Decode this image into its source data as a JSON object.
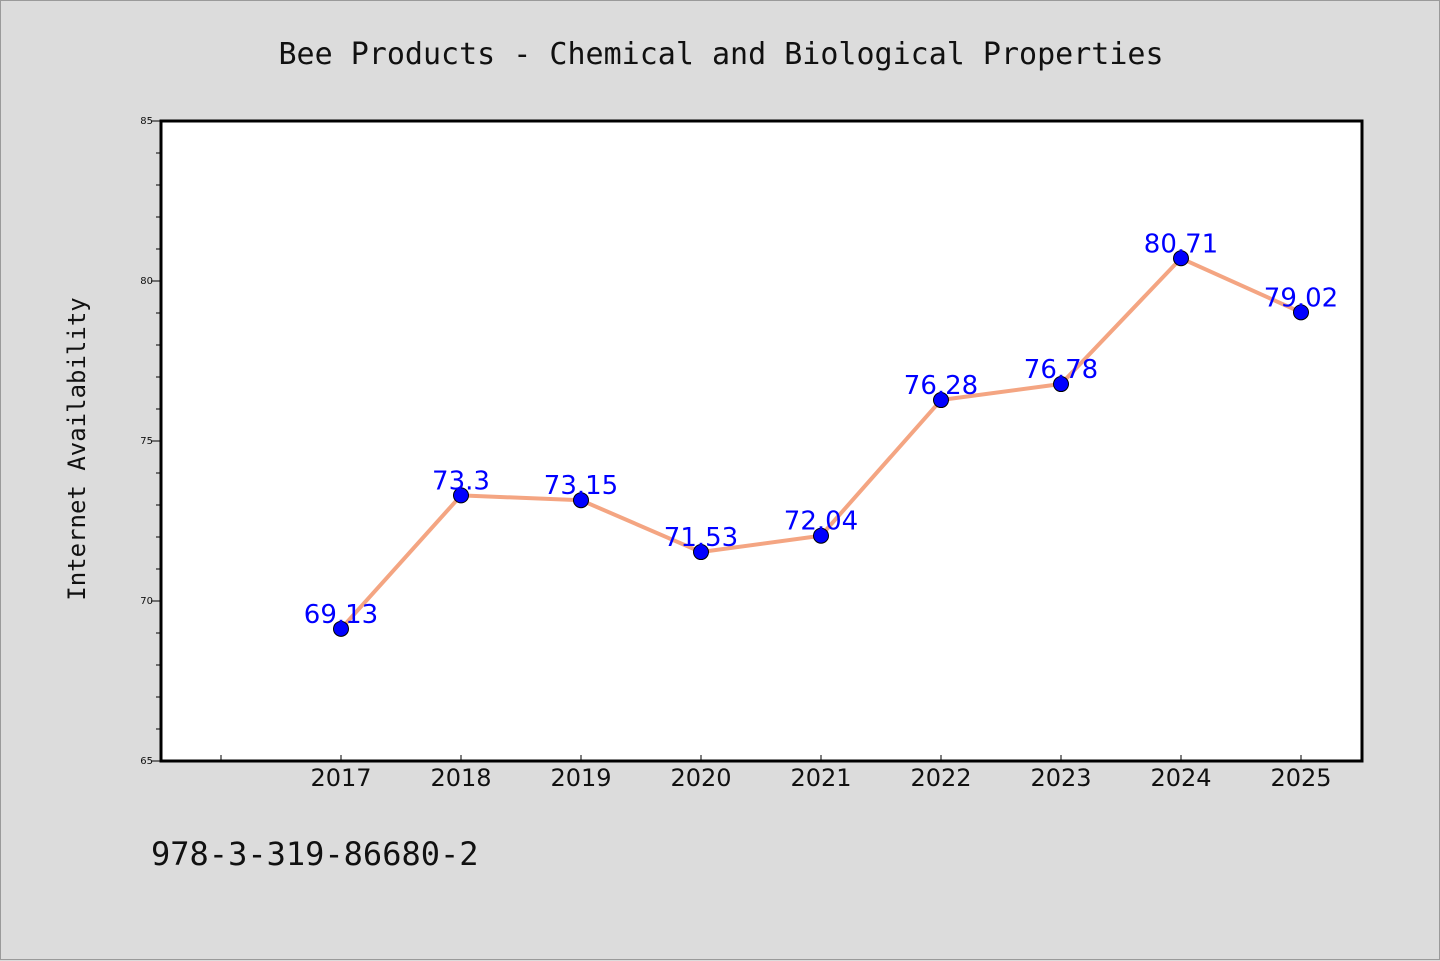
{
  "chart_data": {
    "type": "line",
    "title": "Bee Products - Chemical and Biological Properties",
    "xlabel": "",
    "ylabel": "Internet Availability",
    "categories": [
      "2017",
      "2018",
      "2019",
      "2020",
      "2021",
      "2022",
      "2023",
      "2024",
      "2025"
    ],
    "values": [
      69.13,
      73.3,
      73.15,
      71.53,
      72.04,
      76.28,
      76.78,
      80.71,
      79.02
    ],
    "data_labels": [
      "69.13",
      "73.3",
      "73.15",
      "71.53",
      "72.04",
      "76.28",
      "76.78",
      "80.71",
      "79.02"
    ],
    "ylim": [
      65,
      85
    ],
    "yticks": [
      "65",
      "70",
      "75",
      "80",
      "85"
    ],
    "grid": false,
    "line_color": "#f4a582",
    "marker_color": "#0000ff",
    "label_color": "#0000ff"
  },
  "footer_text": "978-3-319-86680-2"
}
